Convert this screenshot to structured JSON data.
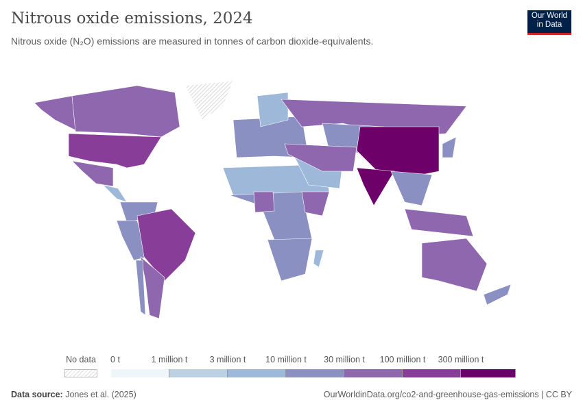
{
  "header": {
    "title": "Nitrous oxide emissions, 2024",
    "subtitle": "Nitrous oxide (N₂O) emissions are measured in tonnes of carbon dioxide-equivalents.",
    "logo": "Our World in Data"
  },
  "legend": {
    "no_data_label": "No data",
    "labels": [
      "0 t",
      "1 million t",
      "3 million t",
      "10 million t",
      "30 million t",
      "100 million t",
      "300 million t"
    ],
    "colors": [
      "#eef6f9",
      "#bccfe3",
      "#9db8d9",
      "#8a91c2",
      "#8e67ae",
      "#883d98",
      "#6e0069"
    ],
    "no_data_color": "#e8e8e8"
  },
  "map": {
    "regions": [
      {
        "name": "alaska",
        "level": 4
      },
      {
        "name": "canada",
        "level": 4
      },
      {
        "name": "greenland",
        "level": -1
      },
      {
        "name": "usa",
        "level": 5
      },
      {
        "name": "mexico",
        "level": 4
      },
      {
        "name": "central-america",
        "level": 2
      },
      {
        "name": "colombia-venezuela",
        "level": 3
      },
      {
        "name": "peru-bolivia",
        "level": 3
      },
      {
        "name": "brazil",
        "level": 5
      },
      {
        "name": "argentina",
        "level": 4
      },
      {
        "name": "chile",
        "level": 3
      },
      {
        "name": "north-africa",
        "level": 2
      },
      {
        "name": "west-central-africa",
        "level": 3
      },
      {
        "name": "nigeria",
        "level": 4
      },
      {
        "name": "ethiopia",
        "level": 4
      },
      {
        "name": "southern-africa",
        "level": 3
      },
      {
        "name": "madagascar",
        "level": 2
      },
      {
        "name": "europe",
        "level": 3
      },
      {
        "name": "scandinavia",
        "level": 2
      },
      {
        "name": "russia",
        "level": 4
      },
      {
        "name": "central-asia",
        "level": 3
      },
      {
        "name": "middle-east",
        "level": 2
      },
      {
        "name": "iran-turkey",
        "level": 4
      },
      {
        "name": "china",
        "level": 6
      },
      {
        "name": "india",
        "level": 6
      },
      {
        "name": "southeast-asia",
        "level": 3
      },
      {
        "name": "indonesia",
        "level": 4
      },
      {
        "name": "japan",
        "level": 3
      },
      {
        "name": "australia",
        "level": 4
      },
      {
        "name": "new-zealand",
        "level": 3
      }
    ]
  },
  "footer": {
    "source_label": "Data source:",
    "source": "Jones et al. (2025)",
    "url": "OurWorldinData.org/co2-and-greenhouse-gas-emissions | CC BY"
  }
}
